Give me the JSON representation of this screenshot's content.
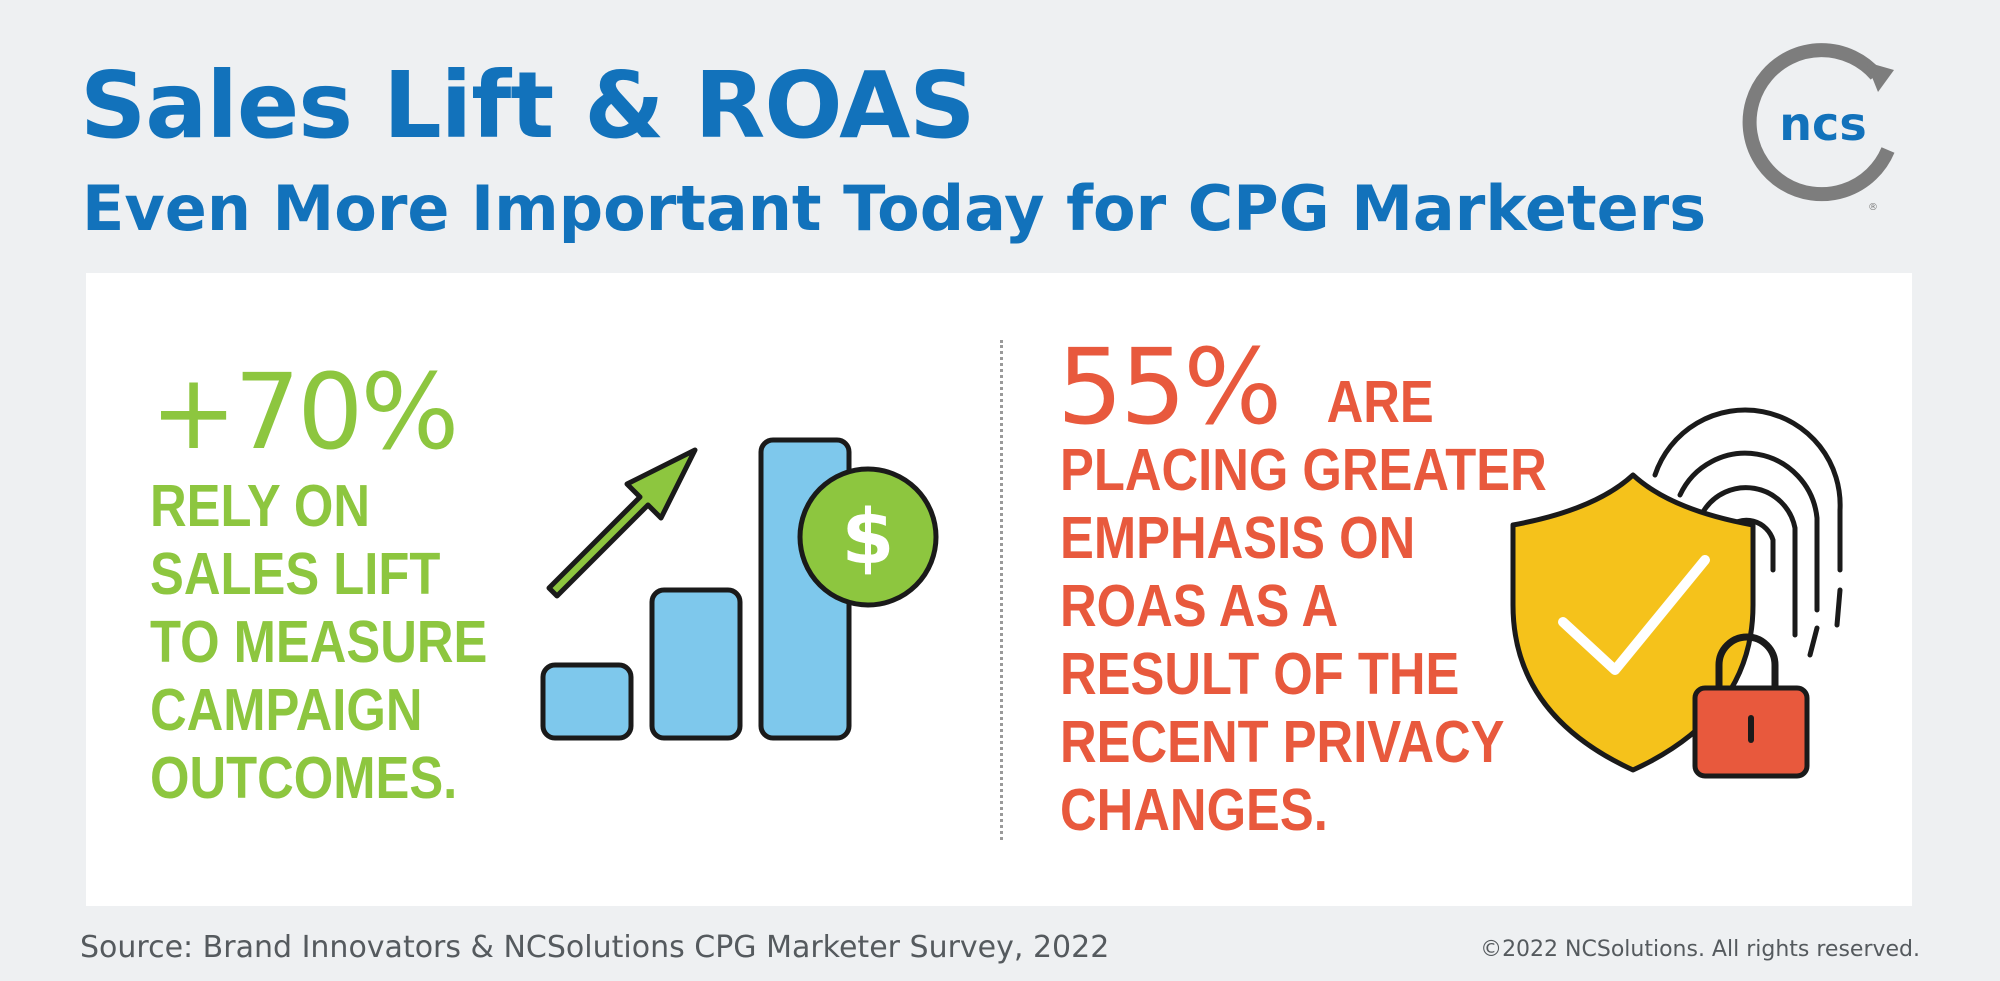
{
  "header": {
    "title": "Sales Lift & ROAS",
    "subtitle": "Even More Important Today for CPG Marketers"
  },
  "logo": {
    "text": "ncs",
    "icon": "ncs-logo"
  },
  "left_stat": {
    "value": "+70%",
    "lines": [
      "RELY ON",
      "SALES LIFT",
      "TO MEASURE",
      "CAMPAIGN",
      "OUTCOMES."
    ],
    "color": "#8dc63f",
    "icon": "growth-chart-dollar-icon"
  },
  "right_stat": {
    "value": "55%",
    "lines": [
      "ARE",
      "PLACING GREATER",
      "EMPHASIS ON",
      "ROAS AS A",
      "RESULT OF THE",
      "RECENT PRIVACY",
      "CHANGES."
    ],
    "color": "#e8593d",
    "icon": "shield-fingerprint-lock-icon"
  },
  "footer": {
    "source": "Source: Brand Innovators & NCSolutions CPG Marketer Survey, 2022",
    "copyright": "©2022 NCSolutions. All rights reserved."
  },
  "colors": {
    "brand_blue": "#1272bb",
    "green": "#8dc63f",
    "orange_red": "#e8593d",
    "light_blue": "#7ec8ec",
    "yellow": "#f5c21b",
    "background": "#eef0f2"
  }
}
